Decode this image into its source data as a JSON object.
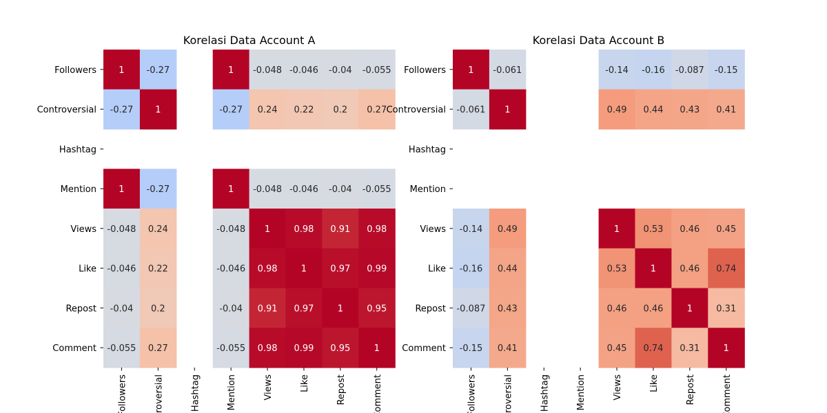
{
  "chart_data": [
    {
      "type": "heatmap",
      "title": "Korelasi Data Account A",
      "rows": [
        "Followers",
        "Controversial",
        "Hashtag",
        "Mention",
        "Views",
        "Like",
        "Repost",
        "Comment"
      ],
      "columns": [
        "Followers",
        "Controversial",
        "Hashtag",
        "Mention",
        "Views",
        "Like",
        "Repost",
        "Comment"
      ],
      "x_tick_labels": [
        "Followers",
        "Controversial",
        "Hashtag",
        "Mention",
        "Views",
        "Like",
        "Repost",
        "Comment"
      ],
      "colormap": "coolwarm",
      "color_range": [
        -1,
        1
      ],
      "annotations": true,
      "matrix": [
        [
          1,
          -0.27,
          null,
          1,
          -0.048,
          -0.046,
          -0.04,
          -0.055
        ],
        [
          -0.27,
          1,
          null,
          -0.27,
          0.24,
          0.22,
          0.2,
          0.27
        ],
        [
          null,
          null,
          null,
          null,
          null,
          null,
          null,
          null
        ],
        [
          1,
          -0.27,
          null,
          1,
          -0.048,
          -0.046,
          -0.04,
          -0.055
        ],
        [
          -0.048,
          0.24,
          null,
          -0.048,
          1,
          0.98,
          0.91,
          0.98
        ],
        [
          -0.046,
          0.22,
          null,
          -0.046,
          0.98,
          1,
          0.97,
          0.99
        ],
        [
          -0.04,
          0.2,
          null,
          -0.04,
          0.91,
          0.97,
          1,
          0.95
        ],
        [
          -0.055,
          0.27,
          null,
          -0.055,
          0.98,
          0.99,
          0.95,
          1
        ]
      ]
    },
    {
      "type": "heatmap",
      "title": "Korelasi Data Account B",
      "rows": [
        "Followers",
        "Controversial",
        "Hashtag",
        "Mention",
        "Views",
        "Like",
        "Repost",
        "Comment"
      ],
      "columns": [
        "Followers",
        "Controversial",
        "Hashtag",
        "Mention",
        "Views",
        "Like",
        "Repost",
        "Comment"
      ],
      "x_tick_labels": [
        "Followers",
        "Controversial",
        "Hashtag",
        "Mention",
        "Views",
        "Like",
        "Repost",
        "Comment"
      ],
      "colormap": "coolwarm",
      "color_range": [
        -1,
        1
      ],
      "annotations": true,
      "matrix": [
        [
          1,
          -0.061,
          null,
          null,
          -0.14,
          -0.16,
          -0.087,
          -0.15
        ],
        [
          -0.061,
          1,
          null,
          null,
          0.49,
          0.44,
          0.43,
          0.41
        ],
        [
          null,
          null,
          null,
          null,
          null,
          null,
          null,
          null
        ],
        [
          null,
          null,
          null,
          null,
          null,
          null,
          null,
          null
        ],
        [
          -0.14,
          0.49,
          null,
          null,
          1,
          0.53,
          0.46,
          0.45
        ],
        [
          -0.16,
          0.44,
          null,
          null,
          0.53,
          1,
          0.46,
          0.74
        ],
        [
          -0.087,
          0.43,
          null,
          null,
          0.46,
          0.46,
          1,
          0.31
        ],
        [
          -0.15,
          0.41,
          null,
          null,
          0.45,
          0.74,
          0.31,
          1
        ]
      ]
    }
  ]
}
